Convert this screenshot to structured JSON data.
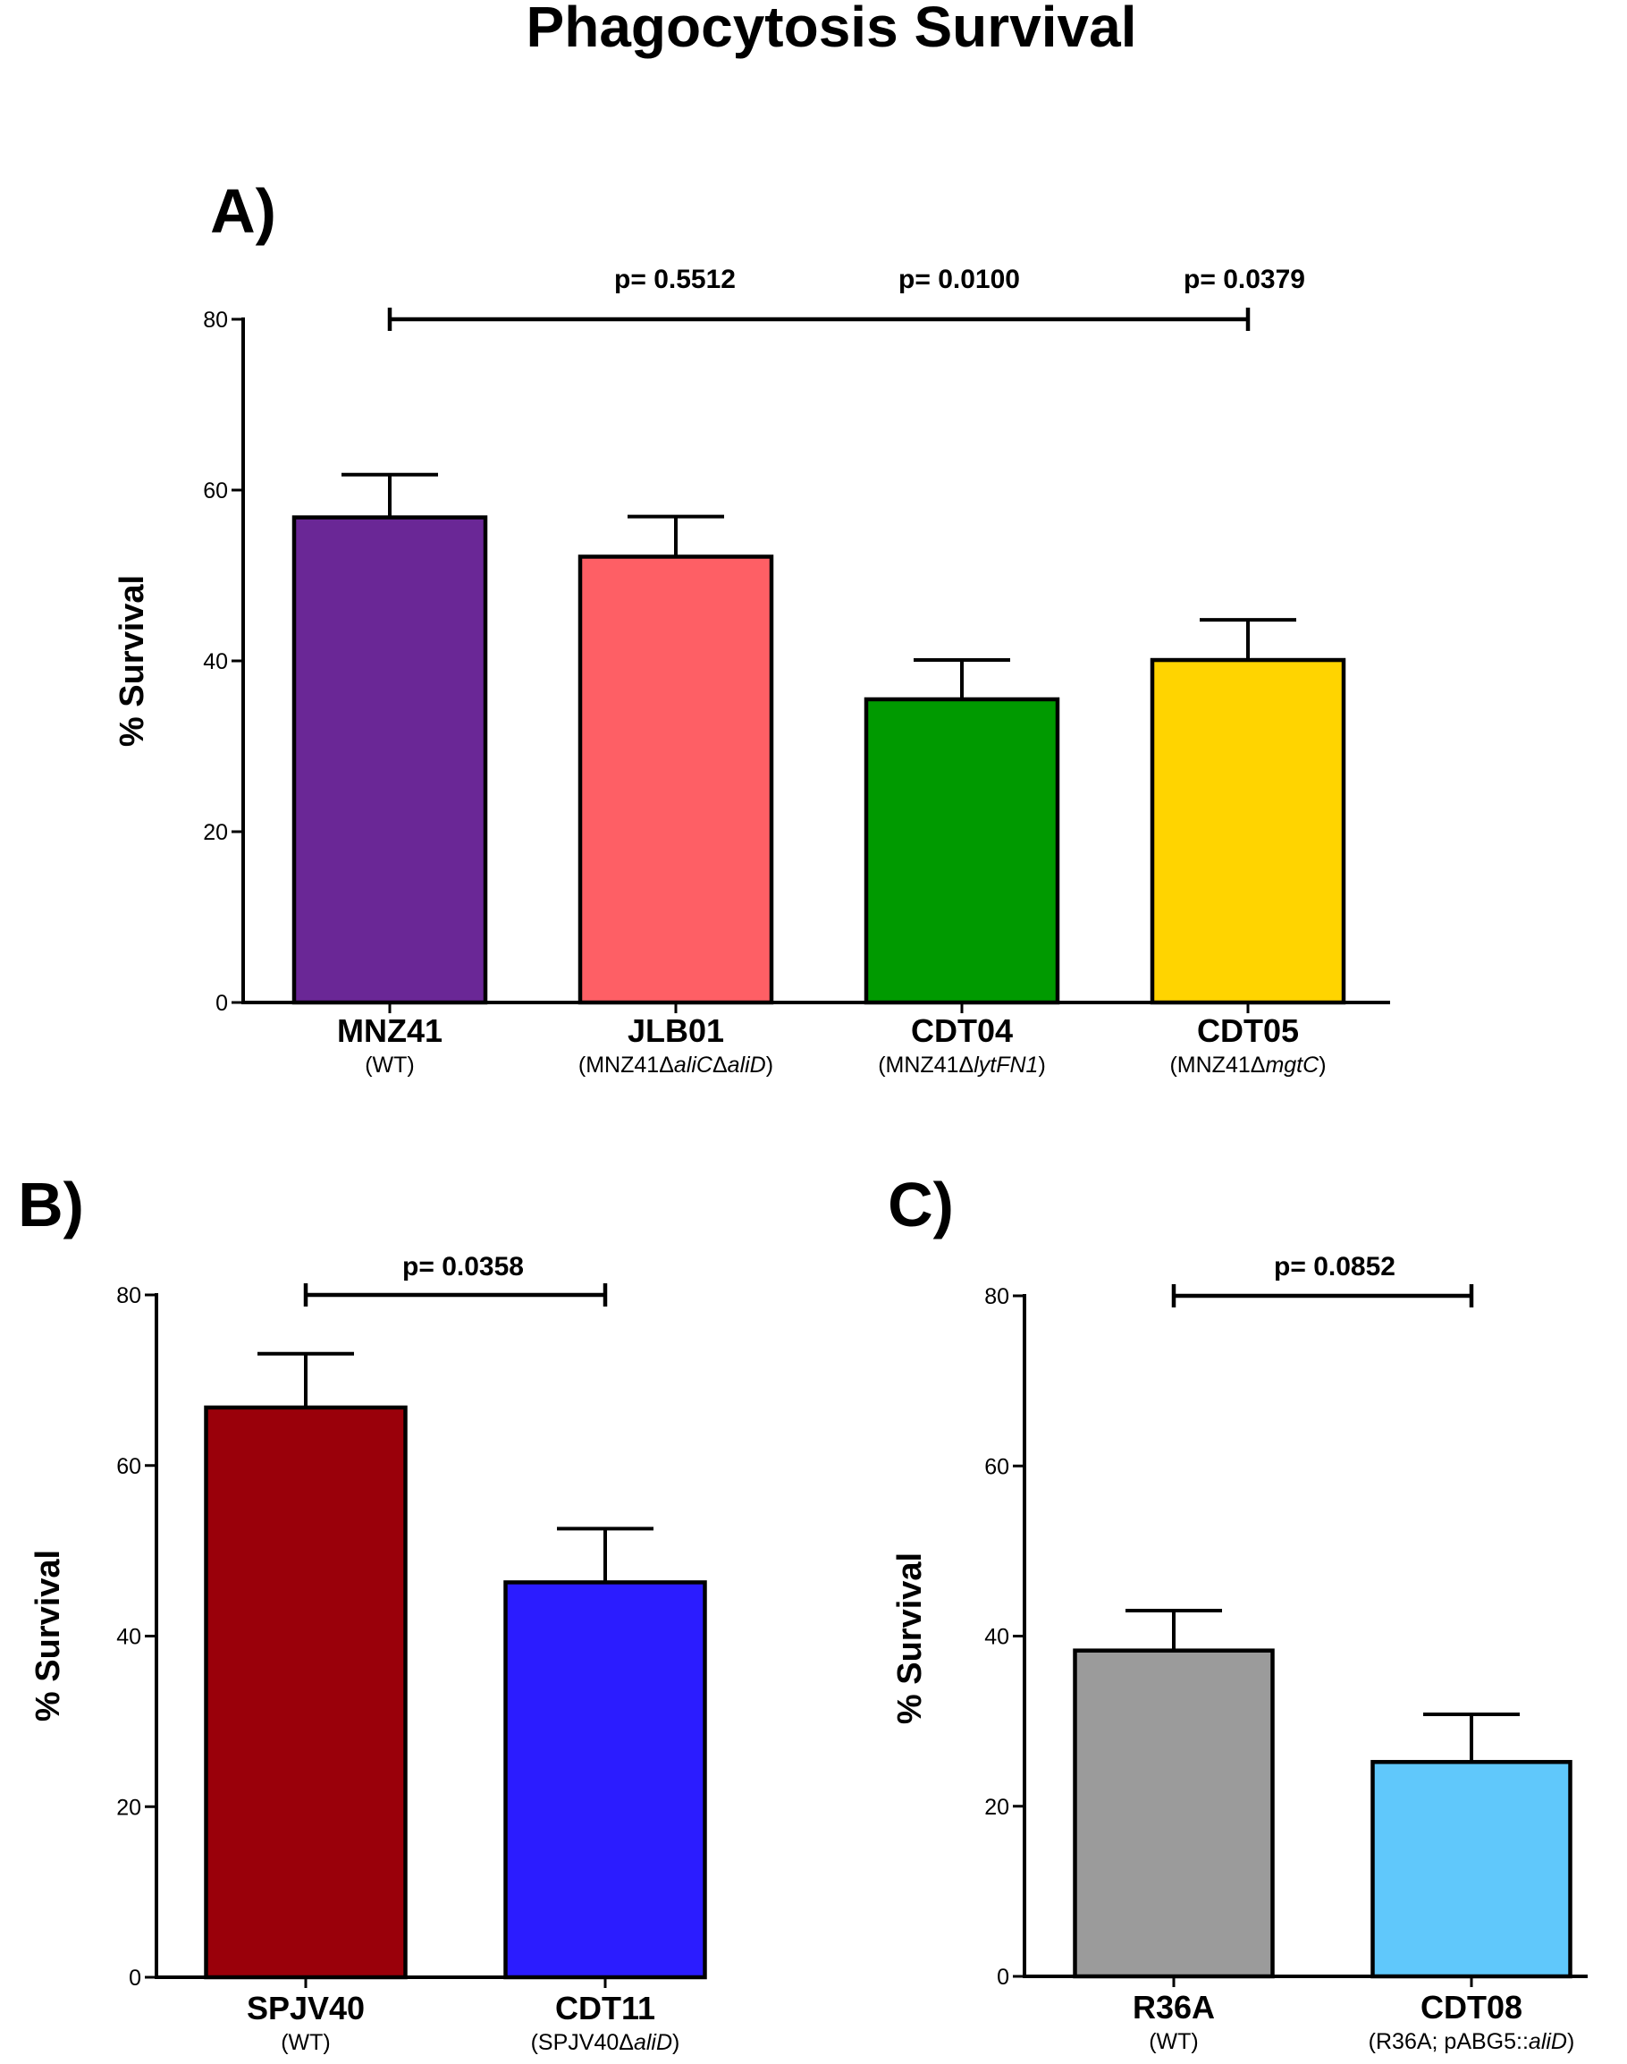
{
  "title": "Phagocytosis Survival",
  "chart_data": [
    {
      "panel": "A)",
      "type": "bar",
      "ylabel": "% Survival",
      "ylim": [
        0,
        80
      ],
      "yticks": [
        0,
        20,
        40,
        60,
        80
      ],
      "categories": [
        {
          "label": "MNZ41",
          "sub": [
            {
              "t": "(WT)",
              "i": false
            }
          ]
        },
        {
          "label": "JLB01",
          "sub": [
            {
              "t": "(MNZ41Δ",
              "i": false
            },
            {
              "t": "aliC",
              "i": true
            },
            {
              "t": "Δ",
              "i": false
            },
            {
              "t": "aliD",
              "i": true
            },
            {
              "t": ")",
              "i": false
            }
          ]
        },
        {
          "label": "CDT04",
          "sub": [
            {
              "t": "(MNZ41Δ",
              "i": false
            },
            {
              "t": "lytFN1",
              "i": true
            },
            {
              "t": ")",
              "i": false
            }
          ]
        },
        {
          "label": "CDT05",
          "sub": [
            {
              "t": "(MNZ41Δ",
              "i": false
            },
            {
              "t": "mgtC",
              "i": true
            },
            {
              "t": ")",
              "i": false
            }
          ]
        }
      ],
      "values": [
        56.8,
        52.2,
        35.5,
        40.1
      ],
      "errors": [
        5.0,
        4.7,
        4.6,
        4.7
      ],
      "colors": [
        "#6a2796",
        "#fe5f65",
        "#009a00",
        "#ffd400"
      ],
      "comparison": {
        "from": 0,
        "to": 3,
        "y": 80
      },
      "pvalues": [
        "p= 0.5512",
        "p= 0.0100",
        "p= 0.0379"
      ]
    },
    {
      "panel": "B)",
      "type": "bar",
      "ylabel": "% Survival",
      "ylim": [
        0,
        80
      ],
      "yticks": [
        0,
        20,
        40,
        60,
        80
      ],
      "categories": [
        {
          "label": "SPJV40",
          "sub": [
            {
              "t": "(WT)",
              "i": false
            }
          ]
        },
        {
          "label": "CDT11",
          "sub": [
            {
              "t": "(SPJV40Δ",
              "i": false
            },
            {
              "t": "aliD",
              "i": true
            },
            {
              "t": ")",
              "i": false
            }
          ]
        }
      ],
      "values": [
        66.8,
        46.3
      ],
      "errors": [
        6.3,
        6.3
      ],
      "colors": [
        "#9a000a",
        "#2b1cff"
      ],
      "comparison": {
        "from": 0,
        "to": 1,
        "y": 80
      },
      "pvalues": [
        "p= 0.0358"
      ]
    },
    {
      "panel": "C)",
      "type": "bar",
      "ylabel": "% Survival",
      "ylim": [
        0,
        80
      ],
      "yticks": [
        0,
        20,
        40,
        60,
        80
      ],
      "categories": [
        {
          "label": "R36A",
          "sub": [
            {
              "t": "(WT)",
              "i": false
            }
          ]
        },
        {
          "label": "CDT08",
          "sub": [
            {
              "t": "(R36A; pABG5::",
              "i": false
            },
            {
              "t": "aliD",
              "i": true
            },
            {
              "t": ")",
              "i": false
            }
          ]
        }
      ],
      "values": [
        38.3,
        25.2
      ],
      "errors": [
        4.7,
        5.6
      ],
      "colors": [
        "#9b9b9b",
        "#60c8fb"
      ],
      "comparison": {
        "from": 0,
        "to": 1,
        "y": 80
      },
      "pvalues": [
        "p= 0.0852"
      ]
    }
  ]
}
